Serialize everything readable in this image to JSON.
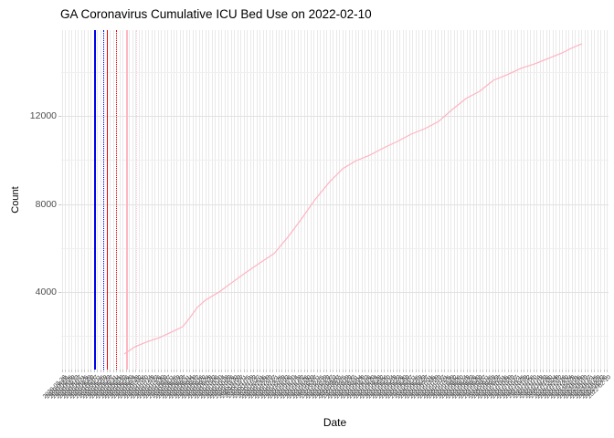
{
  "title": "GA Coronavirus Cumulative ICU Bed Use on 2022-02-10",
  "axis": {
    "x_label": "Date",
    "y_label": "Count"
  },
  "colors": {
    "series_line": "#FFB3C2",
    "vline_blue": "#0000EE",
    "vline_red": "#F50000",
    "vline_pink": "#FFB6C1",
    "vline_pink_dotted": "#FFC9D3",
    "grid_major": "#E2E2E2",
    "grid_minor": "#EFEFEF",
    "grid_vertical": "#E9E9E9"
  },
  "chart_data": {
    "type": "line",
    "title": "GA Coronavirus Cumulative ICU Bed Use on 2022-02-10",
    "xlabel": "Date",
    "ylabel": "Count",
    "grid": "on",
    "legend": "none",
    "ylim": [
      470,
      15900
    ],
    "y_major_ticks": [
      4000,
      8000,
      12000
    ],
    "y_minor_gridlines": [
      2000,
      6000,
      10000,
      14000
    ],
    "x_tick_labels": [
      "2020-03-28",
      "2020-04-01",
      "2020-04-05",
      "2020-04-09",
      "2020-04-13",
      "2020-04-17",
      "2020-04-21",
      "2020-04-25",
      "2020-04-29",
      "2020-05-03",
      "2020-05-07",
      "2020-05-11",
      "2020-05-15",
      "2020-05-19",
      "2020-05-23",
      "2020-05-27",
      "2020-05-31",
      "2020-06-04",
      "2020-06-08",
      "2020-06-12",
      "2020-06-16",
      "2020-06-20",
      "2020-06-24",
      "2020-06-28",
      "2020-07-02",
      "2020-07-06",
      "2020-07-10",
      "2020-07-14",
      "2020-07-18",
      "2020-07-22",
      "2020-07-26",
      "2020-07-30",
      "2020-08-03",
      "2020-08-07",
      "2020-08-11",
      "2020-08-15",
      "2020-08-19",
      "2020-08-23",
      "2020-08-27",
      "2020-08-31",
      "2020-09-04",
      "2020-09-08",
      "2020-09-12",
      "2020-09-16",
      "2020-09-20",
      "2020-09-24",
      "2020-09-28",
      "2020-10-02",
      "2020-10-06",
      "2020-10-10",
      "2020-10-14",
      "2020-10-18",
      "2020-10-22",
      "2020-10-26",
      "2020-10-30",
      "2020-11-03",
      "2020-11-07",
      "2020-11-11",
      "2020-11-15",
      "2020-11-19",
      "2020-11-23",
      "2020-11-27",
      "2020-12-01",
      "2020-12-05",
      "2020-12-09",
      "2020-12-13",
      "2020-12-17",
      "2020-12-21",
      "2020-12-25",
      "2020-12-29",
      "2021-01-02",
      "2021-01-06",
      "2021-01-10",
      "2021-01-14",
      "2021-01-18",
      "2021-01-22",
      "2021-01-26",
      "2021-01-30",
      "2021-02-03",
      "2021-02-07",
      "2021-02-11",
      "2021-02-15",
      "2021-02-19",
      "2021-02-23",
      "2021-02-27",
      "2021-03-03",
      "2021-03-07",
      "2021-03-11",
      "2021-03-15",
      "2021-03-19",
      "2021-03-23",
      "2021-03-27",
      "2021-03-31",
      "2021-04-04",
      "2021-04-08",
      "2021-04-12",
      "2021-04-16",
      "2021-04-20",
      "2021-04-24",
      "2021-04-28",
      "2021-05-02",
      "2021-05-06",
      "2021-05-10",
      "2021-05-14",
      "2021-05-18",
      "2021-05-22",
      "2021-05-26",
      "2021-05-30",
      "2021-06-03",
      "2021-06-07",
      "2021-06-11",
      "2021-06-15",
      "2021-06-19",
      "2021-06-23",
      "2021-06-27",
      "2021-07-01",
      "2021-07-05",
      "2021-07-09",
      "2021-07-13",
      "2021-07-17",
      "2021-07-21",
      "2021-07-25",
      "2021-07-29",
      "2021-08-02",
      "2021-08-06",
      "2021-08-10",
      "2021-08-14",
      "2021-08-18",
      "2021-08-22",
      "2021-08-26",
      "2021-08-30",
      "2021-09-03",
      "2021-09-07",
      "2021-09-11",
      "2021-09-15",
      "2021-09-19",
      "2021-09-23",
      "2021-09-27",
      "2021-10-01",
      "2021-10-05",
      "2021-10-09",
      "2021-10-13",
      "2021-10-17",
      "2021-10-21",
      "2021-10-25",
      "2021-10-29",
      "2021-11-02",
      "2021-11-06",
      "2021-11-10",
      "2021-11-14",
      "2021-11-18",
      "2021-11-22",
      "2021-11-26",
      "2021-11-30",
      "2021-12-04",
      "2021-12-08",
      "2021-12-12",
      "2021-12-16",
      "2021-12-20",
      "2021-12-24",
      "2021-12-28",
      "2022-01-01",
      "2022-01-05",
      "2022-01-09",
      "2022-01-13",
      "2022-01-17",
      "2022-01-21",
      "2022-01-25",
      "2022-01-29",
      "2022-02-02",
      "2022-02-06",
      "2022-02-10"
    ],
    "vlines": [
      {
        "x_frac": 0.0601,
        "color": "#0000EE",
        "style": "solid",
        "width": 2
      },
      {
        "x_frac": 0.0768,
        "color": "#0000EE",
        "style": "dotted",
        "width": 1.5
      },
      {
        "x_frac": 0.0835,
        "color": "#F50000",
        "style": "solid",
        "width": 1.3
      },
      {
        "x_frac": 0.1002,
        "color": "#F50000",
        "style": "dotted",
        "width": 1.5
      },
      {
        "x_frac": 0.1185,
        "color": "#FFB6C1",
        "style": "solid",
        "width": 2
      },
      {
        "x_frac": 0.1369,
        "color": "#FFC9D3",
        "style": "dotted",
        "width": 1.5
      }
    ],
    "series": [
      {
        "name": "cumulative-icu-bed-use",
        "color": "#FFB3C2",
        "points": [
          {
            "date": "2020-06-01",
            "x_frac": 0.1152,
            "value": 1180
          },
          {
            "date": "2020-06-16",
            "x_frac": 0.1352,
            "value": 1510
          },
          {
            "date": "2020-07-01",
            "x_frac": 0.1553,
            "value": 1720
          },
          {
            "date": "2020-07-19",
            "x_frac": 0.1803,
            "value": 1930
          },
          {
            "date": "2020-08-07",
            "x_frac": 0.2053,
            "value": 2220
          },
          {
            "date": "2020-08-19",
            "x_frac": 0.222,
            "value": 2420
          },
          {
            "date": "2020-08-29",
            "x_frac": 0.2354,
            "value": 2840
          },
          {
            "date": "2020-09-08",
            "x_frac": 0.2487,
            "value": 3300
          },
          {
            "date": "2020-09-19",
            "x_frac": 0.2638,
            "value": 3630
          },
          {
            "date": "2020-10-07",
            "x_frac": 0.2888,
            "value": 4000
          },
          {
            "date": "2020-10-26",
            "x_frac": 0.3139,
            "value": 4460
          },
          {
            "date": "2020-11-14",
            "x_frac": 0.3389,
            "value": 4910
          },
          {
            "date": "2020-12-02",
            "x_frac": 0.3639,
            "value": 5330
          },
          {
            "date": "2020-12-21",
            "x_frac": 0.389,
            "value": 5740
          },
          {
            "date": "2021-01-08",
            "x_frac": 0.414,
            "value": 6490
          },
          {
            "date": "2021-01-27",
            "x_frac": 0.4391,
            "value": 7320
          },
          {
            "date": "2021-02-13",
            "x_frac": 0.4624,
            "value": 8150
          },
          {
            "date": "2021-03-05",
            "x_frac": 0.4891,
            "value": 8970
          },
          {
            "date": "2021-03-23",
            "x_frac": 0.5142,
            "value": 9600
          },
          {
            "date": "2021-04-11",
            "x_frac": 0.5392,
            "value": 9970
          },
          {
            "date": "2021-04-29",
            "x_frac": 0.5643,
            "value": 10220
          },
          {
            "date": "2021-05-18",
            "x_frac": 0.5893,
            "value": 10550
          },
          {
            "date": "2021-06-05",
            "x_frac": 0.6143,
            "value": 10840
          },
          {
            "date": "2021-06-24",
            "x_frac": 0.6394,
            "value": 11170
          },
          {
            "date": "2021-07-12",
            "x_frac": 0.6644,
            "value": 11420
          },
          {
            "date": "2021-07-31",
            "x_frac": 0.6895,
            "value": 11750
          },
          {
            "date": "2021-08-19",
            "x_frac": 0.7145,
            "value": 12290
          },
          {
            "date": "2021-09-06",
            "x_frac": 0.7396,
            "value": 12790
          },
          {
            "date": "2021-09-25",
            "x_frac": 0.7646,
            "value": 13120
          },
          {
            "date": "2021-10-13",
            "x_frac": 0.7896,
            "value": 13620
          },
          {
            "date": "2021-11-01",
            "x_frac": 0.8147,
            "value": 13870
          },
          {
            "date": "2021-11-19",
            "x_frac": 0.8397,
            "value": 14160
          },
          {
            "date": "2021-12-08",
            "x_frac": 0.8648,
            "value": 14360
          },
          {
            "date": "2021-12-26",
            "x_frac": 0.8898,
            "value": 14610
          },
          {
            "date": "2022-01-14",
            "x_frac": 0.9149,
            "value": 14860
          },
          {
            "date": "2022-01-26",
            "x_frac": 0.9316,
            "value": 15070
          },
          {
            "date": "2022-02-10",
            "x_frac": 0.9516,
            "value": 15280
          }
        ]
      }
    ]
  }
}
